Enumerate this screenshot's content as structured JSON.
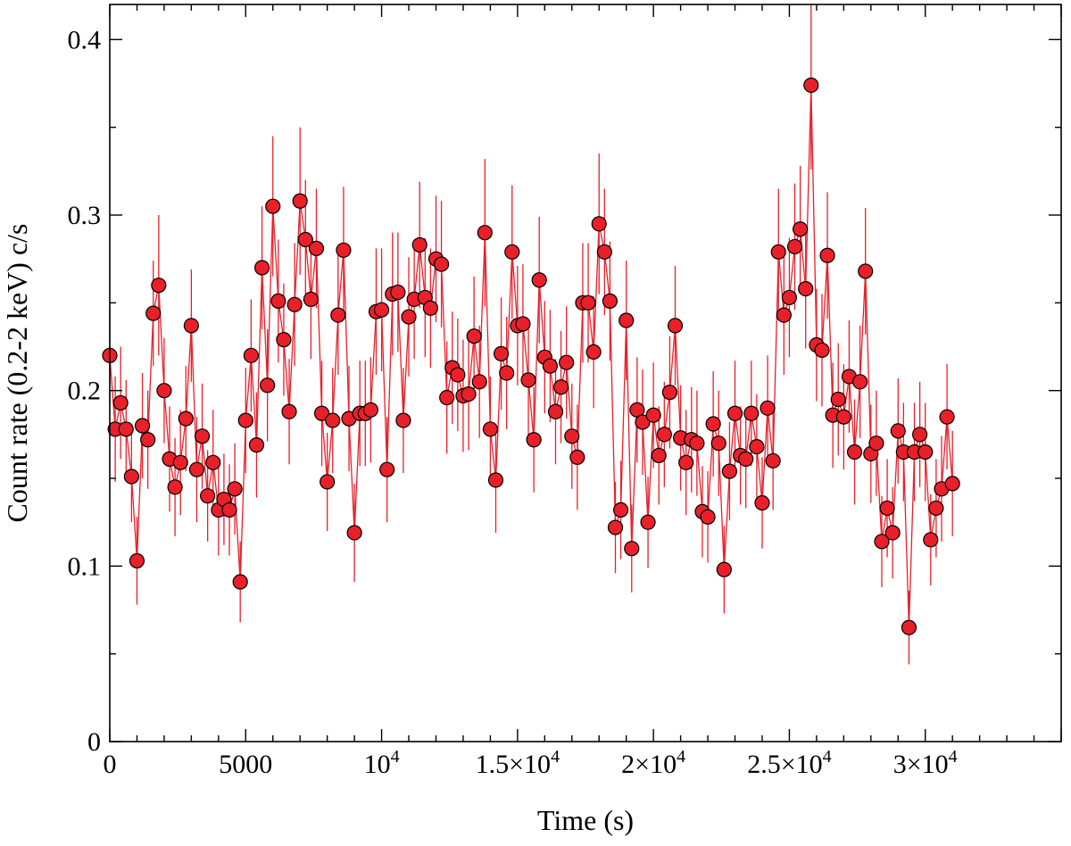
{
  "chart_data": {
    "type": "scatter",
    "xlabel": "Time (s)",
    "ylabel": "Count rate (0.2-2 keV) c/s",
    "xlim": [
      0,
      35000
    ],
    "ylim": [
      0,
      0.42
    ],
    "x_ticks": [
      {
        "value": 0,
        "label": "0"
      },
      {
        "value": 5000,
        "label": "5000"
      },
      {
        "value": 10000,
        "base": "10",
        "exp": "4"
      },
      {
        "value": 15000,
        "base": "1.5×10",
        "exp": "4"
      },
      {
        "value": 20000,
        "base": "2×10",
        "exp": "4"
      },
      {
        "value": 25000,
        "base": "2.5×10",
        "exp": "4"
      },
      {
        "value": 30000,
        "base": "3×10",
        "exp": "4"
      }
    ],
    "y_ticks": [
      {
        "value": 0,
        "label": "0"
      },
      {
        "value": 0.1,
        "label": "0.1"
      },
      {
        "value": 0.2,
        "label": "0.2"
      },
      {
        "value": 0.3,
        "label": "0.3"
      },
      {
        "value": 0.4,
        "label": "0.4"
      }
    ],
    "grid": false,
    "colors": {
      "series": "#e8202a",
      "marker_edge": "#000000"
    },
    "series": [
      {
        "x_start": 0,
        "x_step": 200,
        "values": [
          0.22,
          0.178,
          0.193,
          0.178,
          0.151,
          0.103,
          0.18,
          0.172,
          0.244,
          0.26,
          0.2,
          0.161,
          0.145,
          0.159,
          0.184,
          0.237,
          0.155,
          0.174,
          0.14,
          0.159,
          0.132,
          0.138,
          0.132,
          0.144,
          0.091,
          0.183,
          0.22,
          0.169,
          0.27,
          0.203,
          0.305,
          0.251,
          0.229,
          0.188,
          0.249,
          0.308,
          0.286,
          0.252,
          0.281,
          0.187,
          0.148,
          0.183,
          0.243,
          0.28,
          0.184,
          0.119,
          0.187,
          0.187,
          0.189,
          0.245,
          0.246,
          0.155,
          0.255,
          0.256,
          0.183,
          0.242,
          0.252,
          0.283,
          0.253,
          0.247,
          0.275,
          0.272,
          0.196,
          0.213,
          0.209,
          0.197,
          0.198,
          0.231,
          0.205,
          0.29,
          0.178,
          0.149,
          0.221,
          0.21,
          0.279,
          0.237,
          0.238,
          0.206,
          0.172,
          0.263,
          0.219,
          0.214,
          0.188,
          0.202,
          0.216,
          0.174,
          0.162,
          0.25,
          0.25,
          0.222,
          0.295,
          0.279,
          0.251,
          0.122,
          0.132,
          0.24,
          0.11,
          0.189,
          0.182,
          0.125,
          0.186,
          0.163,
          0.175,
          0.199,
          0.237,
          0.173,
          0.159,
          0.172,
          0.17,
          0.131,
          0.128,
          0.181,
          0.17,
          0.098,
          0.154,
          0.187,
          0.163,
          0.161,
          0.187,
          0.168,
          0.136,
          0.19,
          0.16,
          0.279,
          0.243,
          0.253,
          0.282,
          0.292,
          0.258,
          0.374,
          0.226,
          0.223,
          0.277,
          0.186,
          0.195,
          0.185,
          0.208,
          0.165,
          0.205,
          0.268,
          0.164,
          0.17,
          0.114,
          0.133,
          0.119,
          0.177,
          0.165,
          0.065,
          0.165,
          0.175,
          0.165,
          0.115,
          0.133,
          0.144,
          0.185,
          0.147
        ],
        "errors": [
          0.028,
          0.03,
          0.032,
          0.028,
          0.026,
          0.025,
          0.03,
          0.028,
          0.03,
          0.04,
          0.03,
          0.03,
          0.028,
          0.03,
          0.03,
          0.032,
          0.03,
          0.03,
          0.026,
          0.03,
          0.026,
          0.026,
          0.026,
          0.026,
          0.023,
          0.03,
          0.032,
          0.03,
          0.035,
          0.032,
          0.04,
          0.035,
          0.032,
          0.03,
          0.035,
          0.042,
          0.034,
          0.034,
          0.034,
          0.03,
          0.028,
          0.03,
          0.034,
          0.036,
          0.03,
          0.028,
          0.03,
          0.03,
          0.03,
          0.036,
          0.035,
          0.03,
          0.035,
          0.034,
          0.03,
          0.034,
          0.034,
          0.036,
          0.034,
          0.034,
          0.036,
          0.036,
          0.032,
          0.032,
          0.032,
          0.032,
          0.032,
          0.034,
          0.032,
          0.042,
          0.03,
          0.03,
          0.032,
          0.032,
          0.038,
          0.034,
          0.034,
          0.032,
          0.03,
          0.036,
          0.032,
          0.032,
          0.03,
          0.032,
          0.032,
          0.03,
          0.03,
          0.034,
          0.034,
          0.032,
          0.04,
          0.036,
          0.034,
          0.026,
          0.028,
          0.034,
          0.025,
          0.03,
          0.03,
          0.026,
          0.03,
          0.028,
          0.03,
          0.032,
          0.034,
          0.03,
          0.03,
          0.03,
          0.03,
          0.026,
          0.026,
          0.03,
          0.03,
          0.025,
          0.028,
          0.03,
          0.028,
          0.028,
          0.03,
          0.03,
          0.026,
          0.03,
          0.028,
          0.036,
          0.034,
          0.034,
          0.036,
          0.036,
          0.034,
          0.048,
          0.032,
          0.032,
          0.036,
          0.03,
          0.032,
          0.03,
          0.032,
          0.03,
          0.032,
          0.036,
          0.028,
          0.03,
          0.026,
          0.028,
          0.026,
          0.03,
          0.028,
          0.021,
          0.028,
          0.03,
          0.028,
          0.026,
          0.028,
          0.03,
          0.03,
          0.03
        ]
      }
    ]
  }
}
